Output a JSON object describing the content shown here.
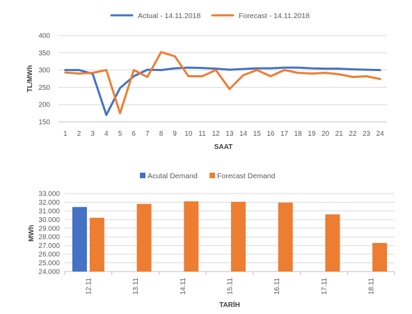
{
  "chart_data": [
    {
      "type": "line",
      "title": "",
      "xlabel": "SAAT",
      "ylabel": "TL/MWh",
      "ylim": [
        150,
        400
      ],
      "yticks": [
        "150",
        "200",
        "250",
        "300",
        "350",
        "400"
      ],
      "grid": true,
      "legend_position": "top",
      "x": [
        "1",
        "2",
        "3",
        "4",
        "5",
        "6",
        "7",
        "8",
        "9",
        "10",
        "11",
        "12",
        "13",
        "14",
        "15",
        "16",
        "17",
        "18",
        "19",
        "20",
        "21",
        "22",
        "23",
        "24"
      ],
      "series": [
        {
          "name": "Actual - 14.11.2018",
          "color": "#4472c4",
          "values": [
            300,
            300,
            289,
            170,
            248,
            282,
            301,
            300,
            305,
            307,
            306,
            304,
            301,
            303,
            305,
            305,
            307,
            307,
            305,
            304,
            304,
            302,
            301,
            300
          ]
        },
        {
          "name": "Forecast - 14.11.2018",
          "color": "#ed7d31",
          "values": [
            293,
            290,
            292,
            300,
            175,
            300,
            280,
            352,
            340,
            282,
            282,
            300,
            245,
            285,
            300,
            282,
            300,
            292,
            290,
            292,
            288,
            280,
            282,
            274
          ]
        }
      ]
    },
    {
      "type": "bar",
      "title": "",
      "xlabel": "TARİH",
      "ylabel": "MWh",
      "ylim": [
        24000,
        33000
      ],
      "yticks": [
        "24.000",
        "25.000",
        "26.000",
        "27.000",
        "28.000",
        "29.000",
        "30.000",
        "31.000",
        "32.000",
        "33.000"
      ],
      "grid": true,
      "legend_position": "top",
      "categories": [
        "12.11",
        "13.11",
        "14.11",
        "15.11",
        "16.11",
        "17.11",
        "18.11"
      ],
      "series": [
        {
          "name": "Acutal Demand",
          "color": "#4472c4",
          "values": [
            31450,
            null,
            null,
            null,
            null,
            null,
            null
          ]
        },
        {
          "name": "Forecast Demand",
          "color": "#ed7d31",
          "values": [
            30200,
            31800,
            32100,
            32050,
            31950,
            30600,
            27300
          ]
        }
      ]
    }
  ]
}
